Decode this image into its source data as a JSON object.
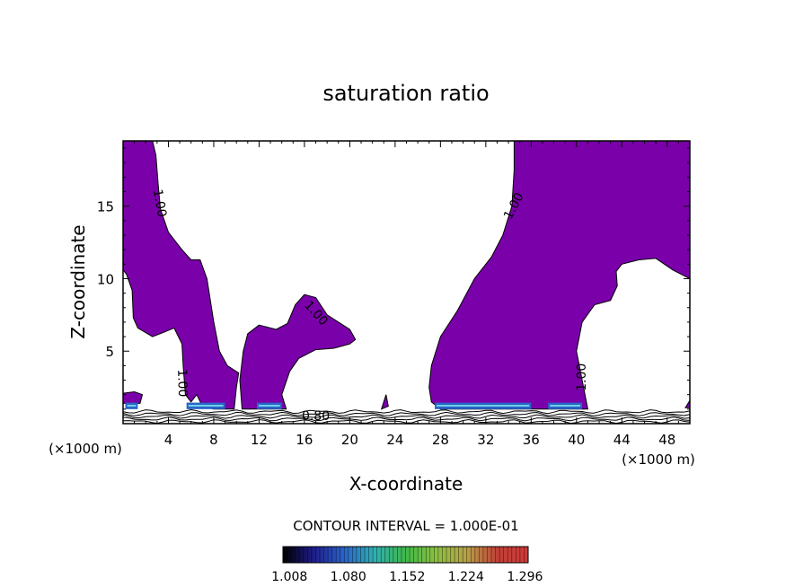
{
  "chart_data": {
    "type": "contour",
    "title": "saturation ratio",
    "xlabel": "X-coordinate",
    "ylabel": "Z-coordinate",
    "x_unit_label": "(×1000 m)",
    "xlim": [
      0,
      50
    ],
    "ylim": [
      0,
      19.5
    ],
    "x_ticks": [
      4,
      8,
      12,
      16,
      20,
      24,
      28,
      32,
      36,
      40,
      44,
      48
    ],
    "y_ticks": [
      5,
      10,
      15
    ],
    "contour_labels": [
      {
        "text": "1.00",
        "x": 3.2,
        "z": 15.2,
        "angle": 80
      },
      {
        "text": "1.00",
        "x": 17.0,
        "z": 7.6,
        "angle": 48
      },
      {
        "text": "1.00",
        "x": 5.2,
        "z": 2.8,
        "angle": 88
      },
      {
        "text": "1.00",
        "x": 34.5,
        "z": 15.0,
        "angle": -62
      },
      {
        "text": "1.00",
        "x": 40.5,
        "z": 3.2,
        "angle": -90
      },
      {
        "text": "0.80",
        "x": 17.0,
        "z": 0.5,
        "angle": 0
      }
    ],
    "supersaturated_regions": [
      [
        [
          0,
          19.5
        ],
        [
          2.6,
          19.5
        ],
        [
          2.9,
          18.5
        ],
        [
          3.1,
          16.5
        ],
        [
          3.3,
          14.8
        ],
        [
          4.0,
          13.2
        ],
        [
          5.2,
          12.0
        ],
        [
          6.0,
          11.3
        ],
        [
          6.8,
          11.3
        ],
        [
          7.4,
          10.0
        ],
        [
          7.7,
          8.5
        ],
        [
          8.0,
          7.0
        ],
        [
          8.5,
          5.0
        ],
        [
          9.2,
          4.0
        ],
        [
          10.2,
          3.5
        ],
        [
          10.0,
          2.5
        ],
        [
          9.8,
          1.0
        ],
        [
          8.0,
          1.0
        ],
        [
          7.0,
          1.2
        ],
        [
          6.5,
          2.0
        ],
        [
          6.0,
          1.5
        ],
        [
          5.5,
          2.0
        ],
        [
          5.3,
          4.0
        ],
        [
          5.2,
          5.5
        ],
        [
          4.5,
          6.6
        ],
        [
          3.6,
          6.3
        ],
        [
          2.6,
          6.0
        ],
        [
          1.3,
          6.6
        ],
        [
          0.9,
          7.3
        ],
        [
          0.8,
          9.2
        ],
        [
          0.3,
          10.3
        ],
        [
          0,
          10.6
        ]
      ],
      [
        [
          10.5,
          1.0
        ],
        [
          10.3,
          3.0
        ],
        [
          10.6,
          5.0
        ],
        [
          11.0,
          6.2
        ],
        [
          12.0,
          6.8
        ],
        [
          13.5,
          6.5
        ],
        [
          14.5,
          6.9
        ],
        [
          15.2,
          8.2
        ],
        [
          16.0,
          8.9
        ],
        [
          17.0,
          8.7
        ],
        [
          18.0,
          7.5
        ],
        [
          19.0,
          7.0
        ],
        [
          20.0,
          6.5
        ],
        [
          20.5,
          5.8
        ],
        [
          20.0,
          5.5
        ],
        [
          18.6,
          5.2
        ],
        [
          17.0,
          5.1
        ],
        [
          15.5,
          4.5
        ],
        [
          14.7,
          3.6
        ],
        [
          14.0,
          2.0
        ],
        [
          14.4,
          1.0
        ]
      ],
      [
        [
          34.5,
          19.5
        ],
        [
          50,
          19.5
        ],
        [
          50,
          10.0
        ],
        [
          48.5,
          10.6
        ],
        [
          47.0,
          11.4
        ],
        [
          45.5,
          11.3
        ],
        [
          44.0,
          11.0
        ],
        [
          43.5,
          10.5
        ],
        [
          43.6,
          9.5
        ],
        [
          43.0,
          8.5
        ],
        [
          41.6,
          8.2
        ],
        [
          40.5,
          7.0
        ],
        [
          40.0,
          5.0
        ],
        [
          40.5,
          3.0
        ],
        [
          41.0,
          1.0
        ],
        [
          37.0,
          1.0
        ],
        [
          34.0,
          1.0
        ],
        [
          28.0,
          1.0
        ],
        [
          27.2,
          1.5
        ],
        [
          27.0,
          2.5
        ],
        [
          27.2,
          4.0
        ],
        [
          28.0,
          6.0
        ],
        [
          29.5,
          7.8
        ],
        [
          31.0,
          10.0
        ],
        [
          32.5,
          11.5
        ],
        [
          33.5,
          13.0
        ],
        [
          34.3,
          15.0
        ],
        [
          34.5,
          17.5
        ]
      ],
      [
        [
          0,
          1.4
        ],
        [
          1.5,
          1.4
        ],
        [
          1.7,
          2.0
        ],
        [
          1.0,
          2.2
        ],
        [
          0,
          2.1
        ]
      ],
      [
        [
          22.8,
          1.0
        ],
        [
          23.2,
          2.0
        ],
        [
          23.4,
          1.2
        ]
      ],
      [
        [
          49.6,
          1.1
        ],
        [
          50,
          1.1
        ],
        [
          50,
          1.6
        ]
      ]
    ],
    "colorbar": {
      "label": "CONTOUR INTERVAL = 1.000E-01",
      "tick_labels": [
        "1.008",
        "1.080",
        "1.152",
        "1.224",
        "1.296"
      ],
      "range": [
        1.0,
        1.3
      ],
      "colors": [
        "#000000",
        "#1f1d8a",
        "#2a64c8",
        "#2fb0b0",
        "#3fb84a",
        "#8cc040",
        "#b8a048",
        "#c04038",
        "#d03838"
      ]
    }
  }
}
